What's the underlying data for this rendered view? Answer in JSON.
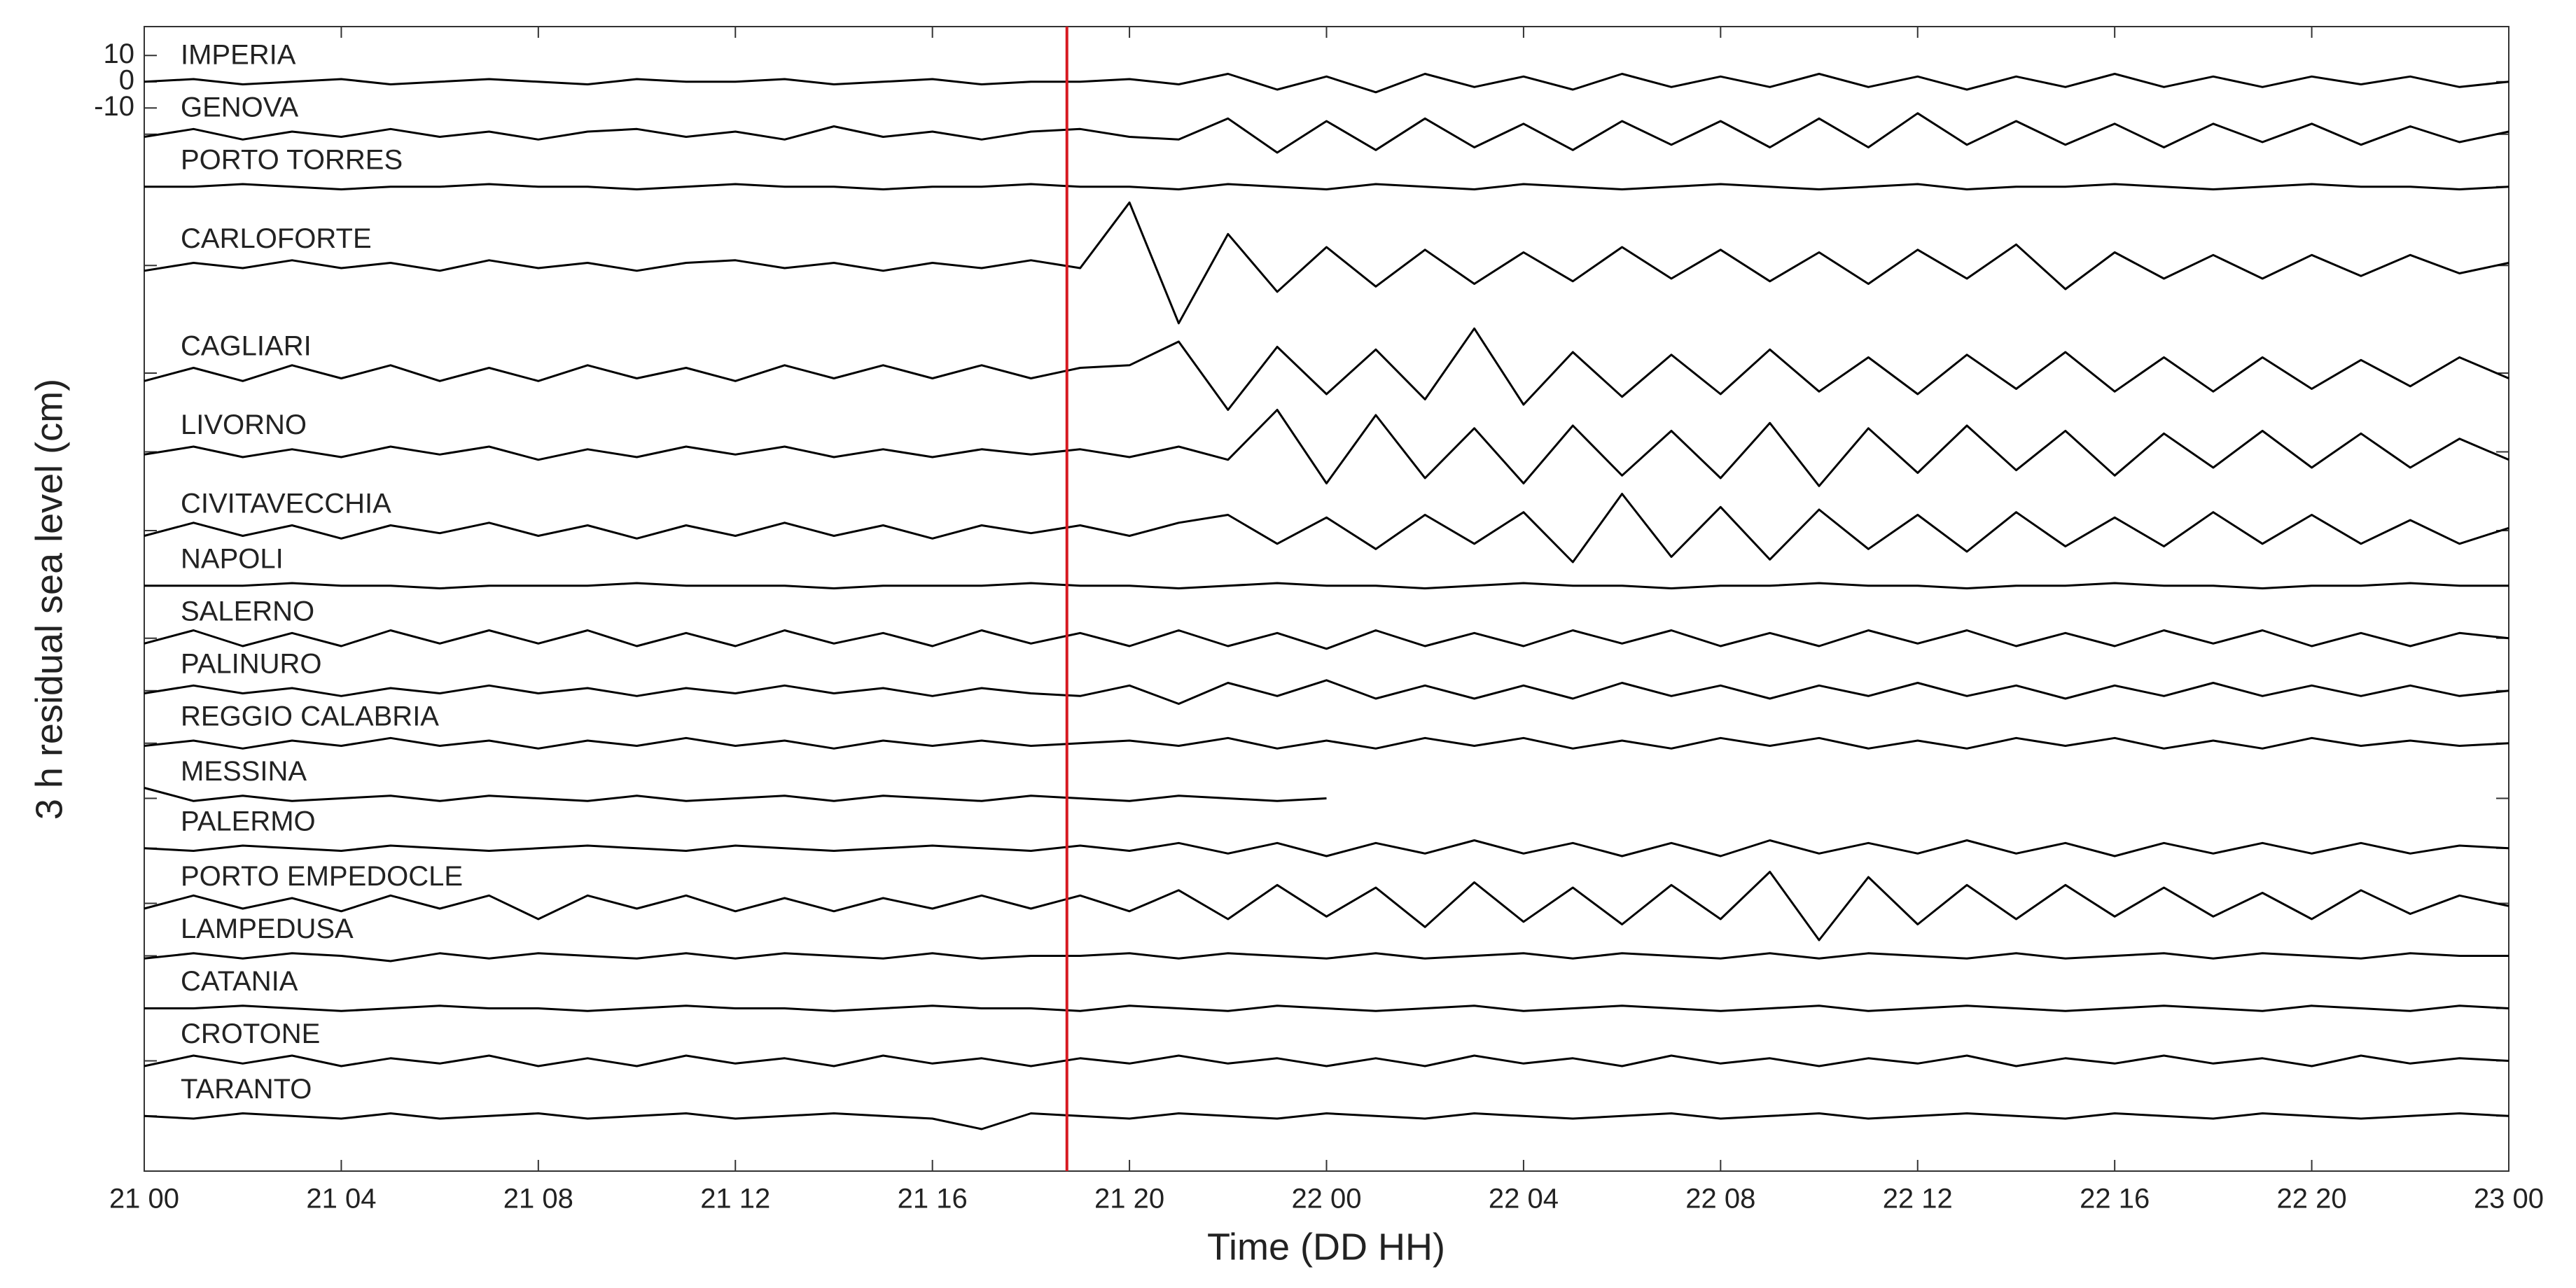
{
  "chart_data": {
    "type": "offset-lines",
    "xlabel": "Time (DD HH)",
    "ylabel": "3 h residual sea level (cm)",
    "x": [
      0,
      1,
      2,
      3,
      4,
      5,
      6,
      7,
      8,
      9,
      10,
      11,
      12,
      13,
      14,
      15,
      16,
      17,
      18,
      19,
      20,
      21,
      22,
      23,
      24,
      25,
      26,
      27,
      28,
      29,
      30,
      31,
      32,
      33,
      34,
      35,
      36,
      37,
      38,
      39,
      40,
      41,
      42,
      43,
      44,
      45,
      46,
      47,
      48
    ],
    "xlim": [
      0,
      48
    ],
    "xticks": [
      {
        "value": 0,
        "label": "21 00"
      },
      {
        "value": 4,
        "label": "21 04"
      },
      {
        "value": 8,
        "label": "21 08"
      },
      {
        "value": 12,
        "label": "21 12"
      },
      {
        "value": 16,
        "label": "21 16"
      },
      {
        "value": 20,
        "label": "21 20"
      },
      {
        "value": 24,
        "label": "22 00"
      },
      {
        "value": 28,
        "label": "22 04"
      },
      {
        "value": 32,
        "label": "22 08"
      },
      {
        "value": 36,
        "label": "22 12"
      },
      {
        "value": 40,
        "label": "22 16"
      },
      {
        "value": 44,
        "label": "22 20"
      },
      {
        "value": 48,
        "label": "23 00"
      }
    ],
    "ylim": [
      -415,
      21
    ],
    "yticks": [
      -10,
      0,
      10
    ],
    "marker_x": 18.73,
    "marker_color": "#d71920",
    "series": [
      {
        "name": "IMPERIA",
        "color": "#000000",
        "offset": 0,
        "values": [
          0,
          1,
          -1,
          0,
          1,
          -1,
          0,
          1,
          0,
          -1,
          1,
          0,
          0,
          1,
          -1,
          0,
          1,
          -1,
          0,
          0,
          1,
          -1,
          3,
          -3,
          2,
          -4,
          3,
          -2,
          2,
          -3,
          3,
          -2,
          2,
          -2,
          3,
          -2,
          2,
          -3,
          2,
          -2,
          3,
          -2,
          2,
          -2,
          2,
          -1,
          2,
          -2,
          0
        ]
      },
      {
        "name": "GENOVA",
        "color": "#000000",
        "offset": -20,
        "values": [
          -1,
          2,
          -2,
          1,
          -1,
          2,
          -1,
          1,
          -2,
          1,
          2,
          -1,
          1,
          -2,
          3,
          -1,
          1,
          -2,
          1,
          2,
          -1,
          -2,
          6,
          -7,
          5,
          -6,
          6,
          -5,
          4,
          -6,
          5,
          -4,
          5,
          -5,
          6,
          -5,
          8,
          -4,
          5,
          -4,
          4,
          -5,
          4,
          -3,
          4,
          -4,
          3,
          -3,
          1
        ]
      },
      {
        "name": "PORTO TORRES",
        "color": "#000000",
        "offset": -40,
        "values": [
          0,
          0,
          1,
          0,
          -1,
          0,
          0,
          1,
          0,
          0,
          -1,
          0,
          1,
          0,
          0,
          -1,
          0,
          0,
          1,
          0,
          0,
          -1,
          1,
          0,
          -1,
          1,
          0,
          -1,
          1,
          0,
          -1,
          0,
          1,
          0,
          -1,
          0,
          1,
          -1,
          0,
          0,
          1,
          0,
          -1,
          0,
          1,
          0,
          0,
          -1,
          0
        ]
      },
      {
        "name": "CARLOFORTE",
        "color": "#000000",
        "offset": -70,
        "values": [
          -2,
          1,
          -1,
          2,
          -1,
          1,
          -2,
          2,
          -1,
          1,
          -2,
          1,
          2,
          -1,
          1,
          -2,
          1,
          -1,
          2,
          -1,
          24,
          -22,
          12,
          -10,
          7,
          -8,
          6,
          -7,
          5,
          -6,
          7,
          -5,
          6,
          -6,
          5,
          -7,
          6,
          -5,
          8,
          -9,
          5,
          -5,
          4,
          -5,
          4,
          -4,
          4,
          -3,
          1
        ]
      },
      {
        "name": "CAGLIARI",
        "color": "#000000",
        "offset": -111,
        "values": [
          -3,
          2,
          -3,
          3,
          -2,
          3,
          -3,
          2,
          -3,
          3,
          -2,
          2,
          -3,
          3,
          -2,
          3,
          -2,
          3,
          -2,
          2,
          3,
          12,
          -14,
          10,
          -8,
          9,
          -10,
          17,
          -12,
          8,
          -9,
          7,
          -8,
          9,
          -7,
          6,
          -8,
          7,
          -6,
          8,
          -7,
          6,
          -7,
          6,
          -6,
          5,
          -5,
          6,
          -2
        ]
      },
      {
        "name": "LIVORNO",
        "color": "#000000",
        "offset": -141,
        "values": [
          -1,
          2,
          -2,
          1,
          -2,
          2,
          -1,
          2,
          -3,
          1,
          -2,
          2,
          -1,
          2,
          -2,
          1,
          -2,
          1,
          -1,
          1,
          -2,
          2,
          -3,
          16,
          -12,
          14,
          -10,
          9,
          -12,
          10,
          -9,
          8,
          -10,
          11,
          -13,
          9,
          -8,
          10,
          -7,
          8,
          -9,
          7,
          -6,
          8,
          -6,
          7,
          -6,
          5,
          -3
        ]
      },
      {
        "name": "CIVITAVECCHIA",
        "color": "#000000",
        "offset": -171,
        "values": [
          -2,
          3,
          -2,
          2,
          -3,
          2,
          -1,
          3,
          -2,
          2,
          -3,
          2,
          -2,
          3,
          -2,
          2,
          -3,
          2,
          -1,
          2,
          -2,
          3,
          6,
          -5,
          5,
          -7,
          6,
          -5,
          7,
          -12,
          14,
          -10,
          9,
          -11,
          8,
          -7,
          6,
          -8,
          7,
          -6,
          5,
          -6,
          7,
          -5,
          6,
          -5,
          4,
          -5,
          1
        ]
      },
      {
        "name": "NAPOLI",
        "color": "#000000",
        "offset": -192,
        "values": [
          0,
          0,
          0,
          1,
          0,
          0,
          -1,
          0,
          0,
          0,
          1,
          0,
          0,
          0,
          -1,
          0,
          0,
          0,
          1,
          0,
          0,
          -1,
          0,
          1,
          0,
          0,
          -1,
          0,
          1,
          0,
          0,
          -1,
          0,
          0,
          1,
          0,
          0,
          -1,
          0,
          0,
          1,
          0,
          0,
          -1,
          0,
          0,
          1,
          0,
          0
        ]
      },
      {
        "name": "SALERNO",
        "color": "#000000",
        "offset": -212,
        "values": [
          -2,
          3,
          -3,
          2,
          -3,
          3,
          -2,
          3,
          -2,
          3,
          -3,
          2,
          -3,
          3,
          -2,
          2,
          -3,
          3,
          -2,
          2,
          -3,
          3,
          -3,
          2,
          -4,
          3,
          -3,
          2,
          -3,
          3,
          -2,
          3,
          -3,
          2,
          -3,
          3,
          -2,
          3,
          -3,
          2,
          -3,
          3,
          -2,
          3,
          -3,
          2,
          -3,
          2,
          0
        ]
      },
      {
        "name": "PALINURO",
        "color": "#000000",
        "offset": -232,
        "values": [
          -1,
          2,
          -1,
          1,
          -2,
          1,
          -1,
          2,
          -1,
          1,
          -2,
          1,
          -1,
          2,
          -1,
          1,
          -2,
          1,
          -1,
          -2,
          2,
          -5,
          3,
          -2,
          4,
          -3,
          2,
          -3,
          2,
          -3,
          3,
          -2,
          2,
          -3,
          2,
          -2,
          3,
          -2,
          2,
          -3,
          2,
          -2,
          3,
          -2,
          2,
          -2,
          2,
          -2,
          0
        ]
      },
      {
        "name": "REGGIO CALABRIA",
        "color": "#000000",
        "offset": -252,
        "values": [
          -1,
          1,
          -2,
          1,
          -1,
          2,
          -1,
          1,
          -2,
          1,
          -1,
          2,
          -1,
          1,
          -2,
          1,
          -1,
          1,
          -1,
          0,
          1,
          -1,
          2,
          -2,
          1,
          -2,
          2,
          -1,
          2,
          -2,
          1,
          -2,
          2,
          -1,
          2,
          -2,
          1,
          -2,
          2,
          -1,
          2,
          -2,
          1,
          -2,
          2,
          -1,
          1,
          -1,
          0
        ]
      },
      {
        "name": "MESSINA",
        "color": "#000000",
        "offset": -273,
        "values": [
          4,
          -1,
          1,
          -1,
          0,
          1,
          -1,
          1,
          0,
          -1,
          1,
          -1,
          0,
          1,
          -1,
          1,
          0,
          -1,
          1,
          0,
          -1,
          1,
          0,
          -1,
          0,
          null,
          null,
          null,
          null,
          null,
          null,
          null,
          null,
          null,
          null,
          null,
          null,
          null,
          null,
          null,
          null,
          null,
          null,
          null,
          null,
          null,
          null,
          null,
          null
        ]
      },
      {
        "name": "PALERMO",
        "color": "#000000",
        "offset": -292,
        "values": [
          0,
          -1,
          1,
          0,
          -1,
          1,
          0,
          -1,
          0,
          1,
          0,
          -1,
          1,
          0,
          -1,
          0,
          1,
          0,
          -1,
          1,
          -1,
          2,
          -2,
          2,
          -3,
          2,
          -2,
          3,
          -2,
          2,
          -3,
          2,
          -3,
          3,
          -2,
          2,
          -2,
          3,
          -2,
          2,
          -3,
          2,
          -2,
          2,
          -2,
          2,
          -2,
          1,
          0
        ]
      },
      {
        "name": "PORTO EMPEDOCLE",
        "color": "#000000",
        "offset": -313,
        "values": [
          -2,
          3,
          -2,
          2,
          -3,
          3,
          -2,
          3,
          -6,
          3,
          -2,
          3,
          -3,
          2,
          -3,
          2,
          -2,
          3,
          -2,
          3,
          -3,
          5,
          -6,
          7,
          -5,
          6,
          -9,
          8,
          -7,
          6,
          -8,
          7,
          -6,
          12,
          -14,
          10,
          -8,
          7,
          -6,
          7,
          -5,
          6,
          -5,
          4,
          -6,
          5,
          -4,
          3,
          -1
        ]
      },
      {
        "name": "LAMPEDUSA",
        "color": "#000000",
        "offset": -333,
        "values": [
          -1,
          1,
          -1,
          1,
          0,
          -2,
          1,
          -1,
          1,
          0,
          -1,
          1,
          -1,
          1,
          0,
          -1,
          1,
          -1,
          0,
          0,
          1,
          -1,
          1,
          0,
          -1,
          1,
          -1,
          0,
          1,
          -1,
          1,
          0,
          -1,
          1,
          -1,
          1,
          0,
          -1,
          1,
          -1,
          0,
          1,
          -1,
          1,
          0,
          -1,
          1,
          0,
          0
        ]
      },
      {
        "name": "CATANIA",
        "color": "#000000",
        "offset": -353,
        "values": [
          0,
          0,
          1,
          0,
          -1,
          0,
          1,
          0,
          0,
          -1,
          0,
          1,
          0,
          0,
          -1,
          0,
          1,
          0,
          0,
          -1,
          1,
          0,
          -1,
          1,
          0,
          -1,
          0,
          1,
          -1,
          0,
          1,
          0,
          -1,
          0,
          1,
          -1,
          0,
          1,
          0,
          -1,
          0,
          1,
          0,
          -1,
          1,
          0,
          -1,
          1,
          0
        ]
      },
      {
        "name": "CROTONE",
        "color": "#000000",
        "offset": -373,
        "values": [
          -2,
          2,
          -1,
          2,
          -2,
          1,
          -1,
          2,
          -2,
          1,
          -2,
          2,
          -1,
          1,
          -2,
          2,
          -1,
          1,
          -2,
          1,
          -1,
          2,
          -1,
          1,
          -2,
          1,
          -2,
          2,
          -1,
          1,
          -2,
          2,
          -1,
          1,
          -2,
          1,
          -1,
          2,
          -2,
          1,
          -1,
          2,
          -1,
          1,
          -2,
          2,
          -1,
          1,
          0
        ]
      },
      {
        "name": "TARANTO",
        "color": "#000000",
        "offset": -394,
        "values": [
          0,
          -1,
          1,
          0,
          -1,
          1,
          -1,
          0,
          1,
          -1,
          0,
          1,
          -1,
          0,
          1,
          0,
          -1,
          -5,
          1,
          0,
          -1,
          1,
          0,
          -1,
          1,
          0,
          -1,
          1,
          0,
          -1,
          0,
          1,
          -1,
          0,
          1,
          -1,
          0,
          1,
          0,
          -1,
          1,
          0,
          -1,
          1,
          0,
          -1,
          0,
          1,
          0
        ]
      }
    ]
  }
}
